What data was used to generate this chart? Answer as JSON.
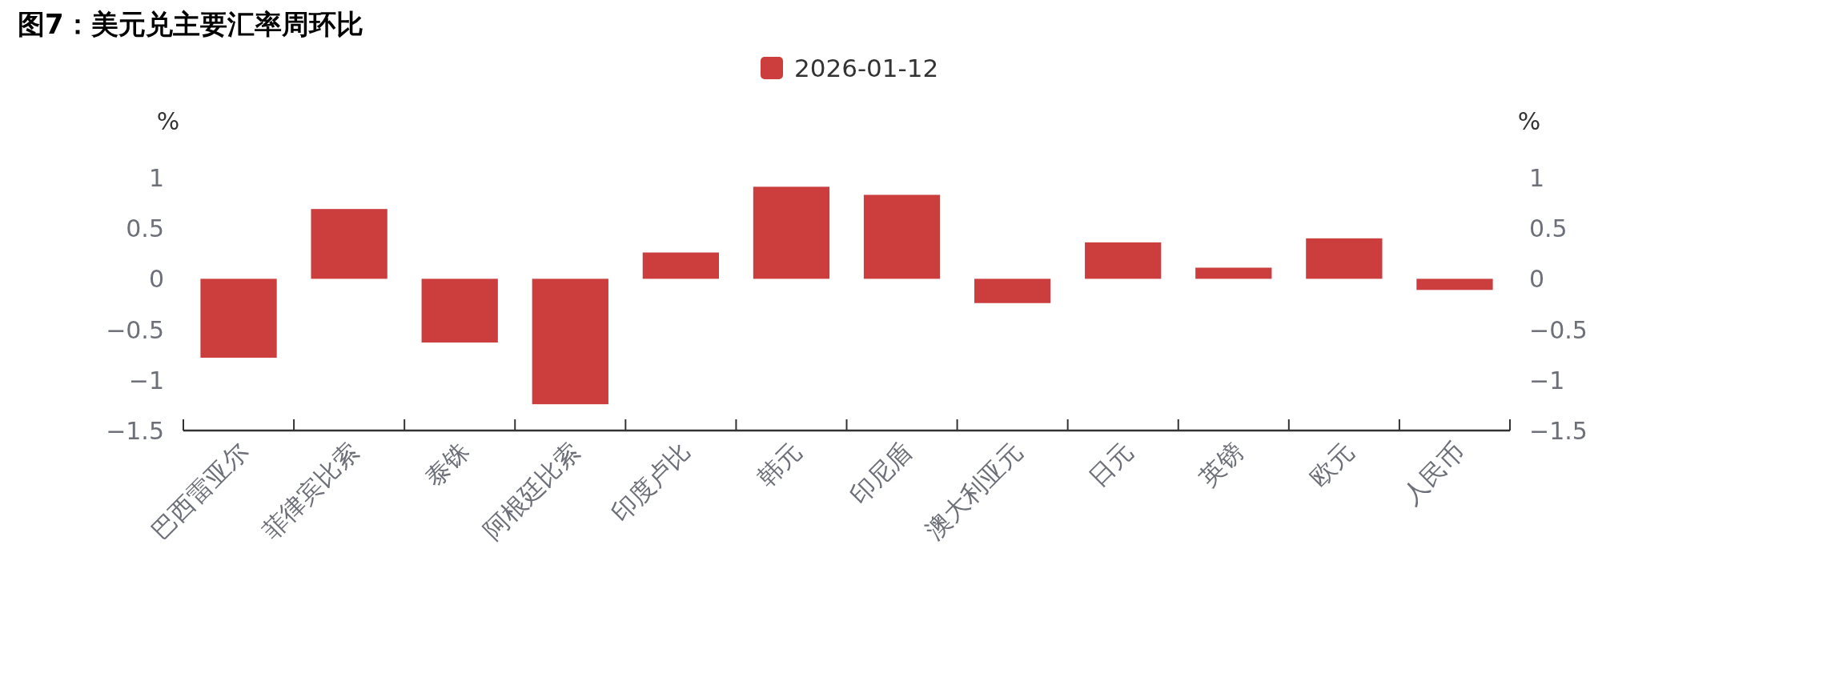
{
  "chart_data": {
    "type": "bar",
    "title": "图7：美元兑主要汇率周环比",
    "categories": [
      "巴西雷亚尔",
      "菲律宾比索",
      "泰铢",
      "阿根廷比索",
      "印度卢比",
      "韩元",
      "印尼盾",
      "澳大利亚元",
      "日元",
      "英镑",
      "欧元",
      "人民币"
    ],
    "series": [
      {
        "name": "2026-01-12",
        "color": "#cc3d3d",
        "values": [
          -0.78,
          0.69,
          -0.63,
          -1.24,
          0.26,
          0.91,
          0.83,
          -0.24,
          0.36,
          0.11,
          0.4,
          -0.11
        ]
      }
    ],
    "ylabel": "%",
    "y2label": "%",
    "ylim": [
      -1.5,
      1
    ],
    "yticks": [
      {
        "value": -1.5,
        "label": "−1.5"
      },
      {
        "value": -1,
        "label": "−1"
      },
      {
        "value": -0.5,
        "label": "−0.5"
      },
      0,
      0.5,
      1
    ],
    "y2lim": [
      -1.5,
      1
    ],
    "y2ticks": [
      {
        "value": -1.5,
        "label": "−1.5"
      },
      {
        "value": -1,
        "label": "−1"
      },
      {
        "value": -0.5,
        "label": "−0.5"
      },
      0,
      0.5,
      1
    ],
    "legend": "top",
    "grid": false
  }
}
